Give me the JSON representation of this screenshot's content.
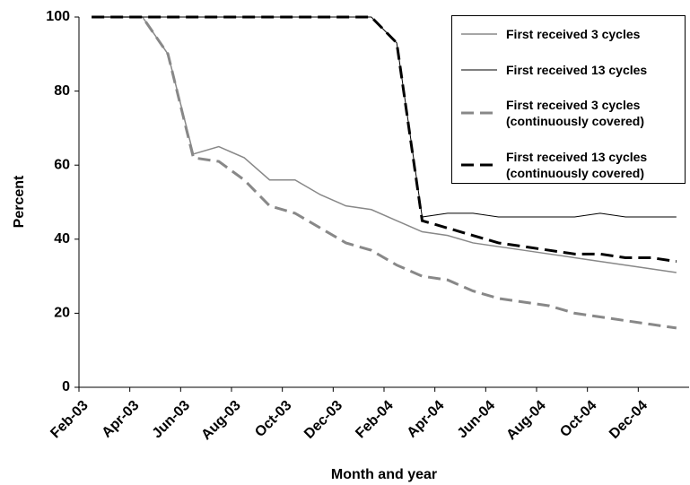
{
  "chart_data": {
    "type": "line",
    "x_label": "Month and year",
    "y_label": "Percent",
    "categories": [
      "Feb-03",
      null,
      "Apr-03",
      null,
      "Jun-03",
      null,
      "Aug-03",
      null,
      "Oct-03",
      null,
      "Dec-03",
      null,
      "Feb-04",
      null,
      "Apr-04",
      null,
      "Jun-04",
      null,
      "Aug-04",
      null,
      "Oct-04",
      null,
      "Dec-04",
      null
    ],
    "ylim": [
      0,
      100
    ],
    "yticks": [
      0,
      20,
      40,
      60,
      80,
      100
    ],
    "grid": false,
    "series": [
      {
        "name": "First received 3 cycles",
        "color": "#888888",
        "dash": "solid",
        "width": 1.5,
        "values": [
          100,
          100,
          100,
          90,
          63,
          65,
          62,
          56,
          56,
          52,
          49,
          48,
          45,
          42,
          41,
          39,
          38,
          37,
          36,
          35,
          34,
          33,
          32,
          31
        ]
      },
      {
        "name": "First received 13 cycles",
        "color": "#000000",
        "dash": "solid",
        "width": 1,
        "values": [
          100,
          100,
          100,
          100,
          100,
          100,
          100,
          100,
          100,
          100,
          100,
          100,
          93,
          46,
          47,
          47,
          46,
          46,
          46,
          46,
          47,
          46,
          46,
          46
        ]
      },
      {
        "name": "First received 3 cycles\n(continuously covered)",
        "color": "#888888",
        "dash": "dashed",
        "width": 3,
        "values": [
          100,
          100,
          100,
          90,
          62,
          61,
          56,
          49,
          47,
          43,
          39,
          37,
          33,
          30,
          29,
          26,
          24,
          23,
          22,
          20,
          19,
          18,
          17,
          16
        ]
      },
      {
        "name": "First received 13 cycles\n(continuously covered)",
        "color": "#000000",
        "dash": "dashed",
        "width": 3,
        "values": [
          100,
          100,
          100,
          100,
          100,
          100,
          100,
          100,
          100,
          100,
          100,
          100,
          93,
          45,
          43,
          41,
          39,
          38,
          37,
          36,
          36,
          35,
          35,
          34
        ]
      }
    ]
  }
}
